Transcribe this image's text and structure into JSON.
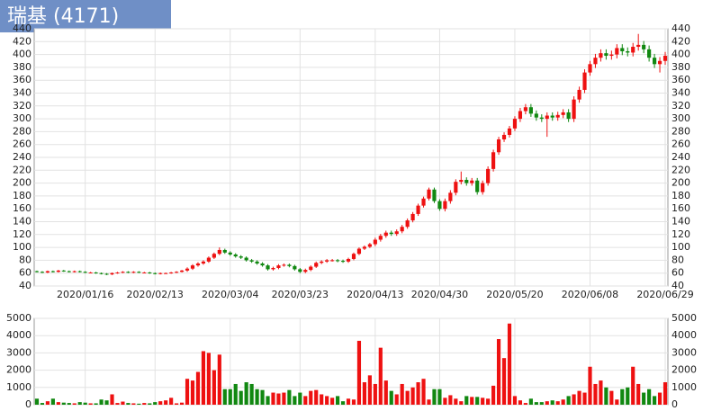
{
  "chart_data": {
    "type": "candlestick",
    "title": "瑞基 (4171)",
    "categories": [
      null,
      null,
      null,
      null,
      null,
      null,
      null,
      null,
      null,
      "2020/01/16",
      null,
      null,
      null,
      null,
      null,
      null,
      null,
      null,
      null,
      null,
      null,
      null,
      "2020/02/13",
      null,
      null,
      null,
      null,
      null,
      null,
      null,
      null,
      null,
      null,
      null,
      null,
      null,
      "2020/03/04",
      null,
      null,
      null,
      null,
      null,
      null,
      null,
      null,
      null,
      null,
      null,
      null,
      "2020/03/23",
      null,
      null,
      null,
      null,
      null,
      null,
      null,
      null,
      null,
      null,
      null,
      null,
      null,
      "2020/04/13",
      null,
      null,
      null,
      null,
      null,
      null,
      null,
      null,
      null,
      null,
      null,
      "2020/04/30",
      null,
      null,
      null,
      null,
      null,
      null,
      null,
      null,
      null,
      null,
      null,
      null,
      null,
      "2020/05/20",
      null,
      null,
      null,
      null,
      null,
      null,
      null,
      null,
      null,
      null,
      null,
      null,
      null,
      "2020/06/08",
      null,
      null,
      null,
      null,
      null,
      null,
      null,
      null,
      null,
      null,
      null,
      null,
      null,
      "2020/06/29"
    ],
    "open": [
      63,
      62,
      61,
      63,
      62,
      64,
      63,
      62,
      63,
      62,
      61,
      61,
      60,
      59,
      58,
      60,
      61,
      62,
      61,
      62,
      61,
      61,
      60,
      59,
      60,
      60,
      61,
      62,
      64,
      67,
      72,
      75,
      78,
      84,
      90,
      96,
      92,
      89,
      86,
      84,
      80,
      78,
      75,
      72,
      66,
      68,
      72,
      73,
      71,
      66,
      62,
      65,
      70,
      76,
      78,
      80,
      80,
      79,
      78,
      82,
      90,
      98,
      101,
      105,
      112,
      118,
      123,
      121,
      125,
      132,
      142,
      152,
      165,
      176,
      190,
      172,
      160,
      172,
      185,
      202,
      205,
      200,
      204,
      186,
      200,
      222,
      248,
      268,
      275,
      285,
      300,
      312,
      318,
      308,
      302,
      300,
      305,
      302,
      306,
      310,
      300,
      330,
      345,
      372,
      385,
      395,
      402,
      398,
      400,
      410,
      405,
      403,
      412,
      415,
      408,
      395,
      385,
      390
    ],
    "high": [
      64,
      63,
      64,
      64,
      65,
      65,
      64,
      64,
      64,
      63,
      62,
      62,
      61,
      60,
      61,
      62,
      63,
      63,
      63,
      63,
      62,
      62,
      61,
      61,
      61,
      62,
      63,
      65,
      69,
      74,
      77,
      80,
      86,
      92,
      100,
      98,
      94,
      91,
      88,
      86,
      82,
      80,
      77,
      74,
      70,
      74,
      75,
      75,
      73,
      68,
      67,
      72,
      78,
      80,
      82,
      82,
      82,
      81,
      84,
      92,
      100,
      103,
      107,
      115,
      121,
      126,
      126,
      128,
      135,
      145,
      155,
      168,
      179,
      193,
      193,
      175,
      176,
      189,
      206,
      218,
      209,
      208,
      208,
      204,
      226,
      252,
      272,
      279,
      289,
      304,
      317,
      323,
      323,
      313,
      307,
      310,
      310,
      311,
      315,
      315,
      335,
      350,
      377,
      390,
      401,
      408,
      408,
      406,
      416,
      416,
      411,
      418,
      432,
      421,
      414,
      401,
      396,
      404
    ],
    "low": [
      61,
      60,
      60,
      61,
      61,
      62,
      61,
      61,
      61,
      60,
      60,
      59,
      58,
      57,
      57,
      59,
      60,
      60,
      60,
      60,
      60,
      59,
      58,
      58,
      59,
      59,
      60,
      61,
      62,
      65,
      70,
      73,
      76,
      82,
      88,
      90,
      87,
      84,
      82,
      78,
      76,
      73,
      70,
      64,
      64,
      66,
      70,
      69,
      64,
      60,
      60,
      63,
      68,
      74,
      76,
      78,
      77,
      76,
      76,
      80,
      88,
      96,
      99,
      102,
      109,
      115,
      118,
      118,
      122,
      129,
      139,
      149,
      162,
      173,
      169,
      157,
      156,
      168,
      181,
      198,
      196,
      196,
      182,
      182,
      196,
      218,
      244,
      264,
      271,
      281,
      295,
      307,
      303,
      297,
      295,
      272,
      297,
      297,
      301,
      295,
      295,
      325,
      340,
      367,
      379,
      389,
      392,
      392,
      394,
      399,
      397,
      397,
      406,
      402,
      389,
      379,
      372,
      384
    ],
    "close": [
      62,
      61,
      63,
      62,
      64,
      63,
      62,
      63,
      62,
      61,
      61,
      60,
      59,
      58,
      60,
      61,
      62,
      61,
      62,
      61,
      61,
      60,
      59,
      60,
      60,
      61,
      62,
      64,
      67,
      72,
      75,
      78,
      84,
      90,
      96,
      92,
      89,
      86,
      84,
      80,
      78,
      75,
      72,
      66,
      68,
      72,
      73,
      71,
      66,
      62,
      65,
      70,
      76,
      78,
      80,
      80,
      79,
      78,
      82,
      90,
      98,
      101,
      105,
      112,
      118,
      123,
      121,
      125,
      132,
      142,
      152,
      165,
      176,
      190,
      172,
      160,
      172,
      185,
      202,
      205,
      200,
      204,
      186,
      200,
      222,
      248,
      268,
      275,
      285,
      300,
      312,
      318,
      308,
      302,
      300,
      305,
      302,
      306,
      310,
      300,
      330,
      345,
      372,
      385,
      395,
      402,
      398,
      400,
      410,
      405,
      403,
      412,
      415,
      408,
      395,
      385,
      390,
      398
    ],
    "ylim": [
      40,
      440
    ],
    "yticks": [
      40,
      60,
      80,
      100,
      120,
      140,
      160,
      180,
      200,
      220,
      240,
      260,
      280,
      300,
      320,
      340,
      360,
      380,
      400,
      420,
      440
    ],
    "volume": {
      "values": [
        350,
        100,
        200,
        350,
        150,
        120,
        100,
        80,
        150,
        120,
        80,
        80,
        300,
        250,
        600,
        100,
        180,
        100,
        80,
        60,
        100,
        80,
        150,
        200,
        250,
        400,
        80,
        120,
        1500,
        1400,
        1900,
        3100,
        3000,
        2000,
        2900,
        900,
        900,
        1200,
        800,
        1300,
        1200,
        900,
        850,
        500,
        700,
        650,
        700,
        850,
        500,
        700,
        500,
        800,
        850,
        600,
        500,
        400,
        500,
        200,
        350,
        300,
        3700,
        1300,
        1700,
        1200,
        3300,
        1400,
        800,
        600,
        1200,
        800,
        1000,
        1300,
        1500,
        300,
        900,
        900,
        400,
        550,
        350,
        200,
        500,
        450,
        450,
        400,
        350,
        1100,
        3800,
        2700,
        4700,
        500,
        250,
        100,
        350,
        150,
        150,
        200,
        250,
        200,
        300,
        500,
        600,
        800,
        700,
        2200,
        1200,
        1400,
        1000,
        800,
        300,
        900,
        1000,
        2200,
        1200,
        700,
        900,
        500,
        700,
        1300
      ],
      "ylim": [
        0,
        5000
      ],
      "yticks": [
        0,
        1000,
        2000,
        3000,
        4000,
        5000
      ]
    },
    "up_color": "#ee1111",
    "down_color": "#118811",
    "grid": true
  }
}
